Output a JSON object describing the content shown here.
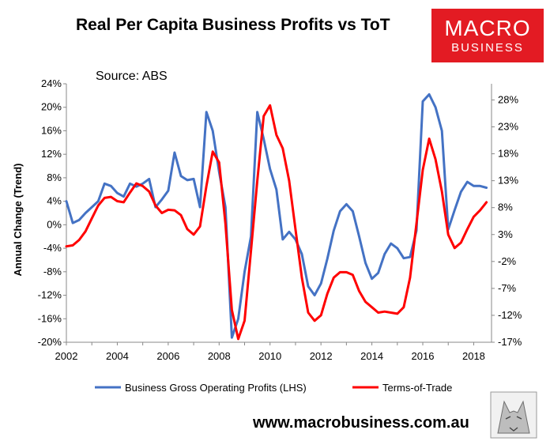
{
  "brand": {
    "line1": "MACRO",
    "line2": "BUSINESS",
    "url": "www.macrobusiness.com.au",
    "color": "#e31b23"
  },
  "chart_data": {
    "type": "line",
    "title": "Real Per Capita Business Profits vs ToT",
    "subtitle": "Source: ABS",
    "ylabel": "Annual Change (Trend)",
    "xlim": [
      2002,
      2018.7
    ],
    "ylim_left": [
      -20,
      24
    ],
    "ylim_right": [
      -17,
      31
    ],
    "x_ticks": [
      "2002",
      "2004",
      "2006",
      "2008",
      "2010",
      "2012",
      "2014",
      "2016",
      "2018"
    ],
    "y_ticks_left": [
      "24%",
      "20%",
      "16%",
      "12%",
      "8%",
      "4%",
      "0%",
      "-4%",
      "-8%",
      "-12%",
      "-16%",
      "-20%"
    ],
    "y_ticks_right": [
      "28%",
      "23%",
      "18%",
      "13%",
      "8%",
      "3%",
      "-2%",
      "-7%",
      "-12%",
      "-17%"
    ],
    "series": [
      {
        "name": "Business Gross Operating Profits (LHS)",
        "axis": "left",
        "color": "#4472c4",
        "x": [
          2002.0,
          2002.25,
          2002.5,
          2002.75,
          2003.0,
          2003.25,
          2003.5,
          2003.75,
          2004.0,
          2004.25,
          2004.5,
          2004.75,
          2005.0,
          2005.25,
          2005.5,
          2005.75,
          2006.0,
          2006.25,
          2006.5,
          2006.75,
          2007.0,
          2007.25,
          2007.5,
          2007.75,
          2008.0,
          2008.25,
          2008.5,
          2008.75,
          2009.0,
          2009.25,
          2009.5,
          2009.75,
          2010.0,
          2010.25,
          2010.5,
          2010.75,
          2011.0,
          2011.25,
          2011.5,
          2011.75,
          2012.0,
          2012.25,
          2012.5,
          2012.75,
          2013.0,
          2013.25,
          2013.5,
          2013.75,
          2014.0,
          2014.25,
          2014.5,
          2014.75,
          2015.0,
          2015.25,
          2015.5,
          2015.75,
          2016.0,
          2016.25,
          2016.5,
          2016.75,
          2017.0,
          2017.25,
          2017.5,
          2017.75,
          2018.0,
          2018.25,
          2018.5
        ],
        "values": [
          4,
          0.3,
          0.8,
          2,
          3,
          4,
          7,
          6.6,
          5.4,
          4.8,
          7,
          6.5,
          7,
          7.8,
          3,
          4.3,
          5.8,
          12.3,
          8.3,
          7.6,
          7.8,
          3,
          19.2,
          16,
          9,
          3,
          -19.2,
          -16,
          -8,
          -2,
          19.2,
          14.6,
          9.5,
          6,
          -2.5,
          -1.2,
          -2.5,
          -5,
          -10.5,
          -12,
          -10,
          -5.8,
          -1,
          2.3,
          3.5,
          2.3,
          -2,
          -6.5,
          -9.2,
          -8.2,
          -5,
          -3.2,
          -4,
          -5.7,
          -5.5,
          -1,
          21,
          22.2,
          20,
          16,
          -0.8,
          2.5,
          5.6,
          7.3,
          6.6,
          6.6,
          6.3
        ]
      },
      {
        "name": "Terms-of-Trade",
        "axis": "right",
        "color": "#ff0000",
        "x": [
          2002.0,
          2002.25,
          2002.5,
          2002.75,
          2003.0,
          2003.25,
          2003.5,
          2003.75,
          2004.0,
          2004.25,
          2004.5,
          2004.75,
          2005.0,
          2005.25,
          2005.5,
          2005.75,
          2006.0,
          2006.25,
          2006.5,
          2006.75,
          2007.0,
          2007.25,
          2007.5,
          2007.75,
          2008.0,
          2008.25,
          2008.5,
          2008.75,
          2009.0,
          2009.25,
          2009.5,
          2009.75,
          2010.0,
          2010.25,
          2010.5,
          2010.75,
          2011.0,
          2011.25,
          2011.5,
          2011.75,
          2012.0,
          2012.25,
          2012.5,
          2012.75,
          2013.0,
          2013.25,
          2013.5,
          2013.75,
          2014.0,
          2014.25,
          2014.5,
          2014.75,
          2015.0,
          2015.25,
          2015.5,
          2015.75,
          2016.0,
          2016.25,
          2016.5,
          2016.75,
          2017.0,
          2017.25,
          2017.5,
          2017.75,
          2018.0,
          2018.25,
          2018.5
        ],
        "values": [
          0.8,
          1,
          2,
          3.6,
          6,
          8.4,
          9.8,
          10,
          9.2,
          9,
          10.8,
          12.5,
          12,
          11,
          8.4,
          7,
          7.6,
          7.5,
          6.6,
          4,
          3,
          4.5,
          12,
          18.4,
          16.4,
          5,
          -11,
          -16.4,
          -13,
          0,
          13,
          25,
          27,
          21.5,
          19,
          13,
          4,
          -5,
          -11.5,
          -13,
          -12,
          -8,
          -5,
          -4,
          -4,
          -4.5,
          -7.5,
          -9.5,
          -10.5,
          -11.5,
          -11.3,
          -11.5,
          -11.7,
          -10.5,
          -5,
          5,
          15,
          20.8,
          17,
          11,
          3,
          0.5,
          1.5,
          4,
          6.3,
          7.5,
          9
        ]
      }
    ]
  }
}
